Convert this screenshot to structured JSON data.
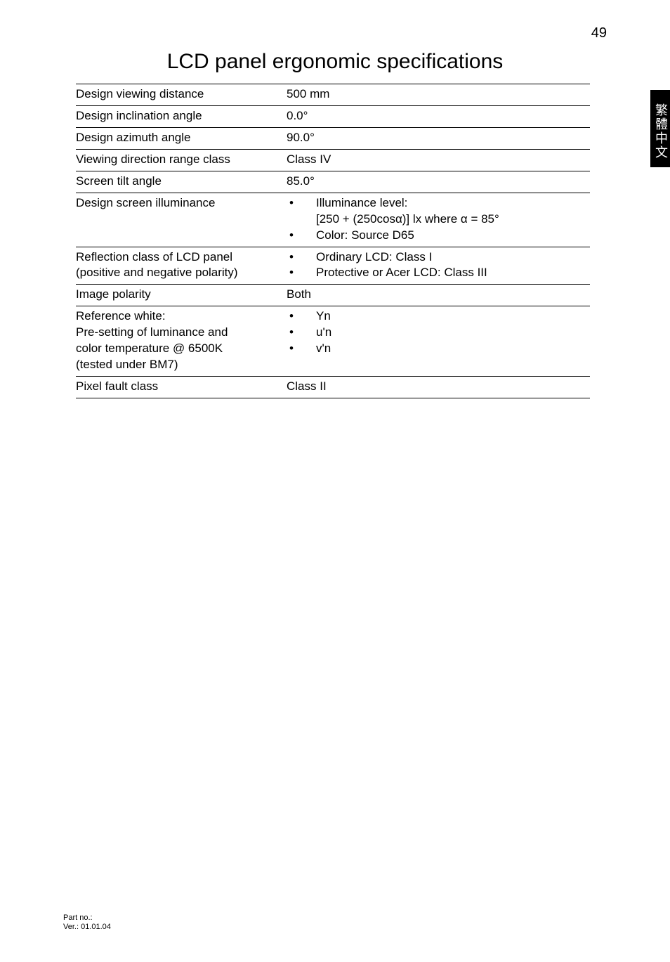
{
  "page_number": "49",
  "side_tab": "繁體中文",
  "title": "LCD panel ergonomic specifications",
  "rows": [
    {
      "label": "Design viewing distance",
      "value": "500 mm"
    },
    {
      "label": "Design inclination angle",
      "value": "0.0°"
    },
    {
      "label": "Design azimuth angle",
      "value": "90.0°"
    },
    {
      "label": "Viewing direction range class",
      "value": "Class IV"
    },
    {
      "label": "Screen tilt angle",
      "value": "85.0°"
    }
  ],
  "illuminance": {
    "label": "Design screen illuminance",
    "items": [
      "Illuminance level:",
      "[250 + (250cosα)] lx where α = 85°",
      "Color: Source D65"
    ]
  },
  "reflection": {
    "label_l1": "Reflection class of LCD panel",
    "label_l2": "(positive and negative polarity)",
    "items": [
      "Ordinary LCD: Class I",
      "Protective or Acer LCD: Class III"
    ]
  },
  "polarity": {
    "label": "Image polarity",
    "value": "Both"
  },
  "reference": {
    "label_l1": "Reference white:",
    "label_l2": "Pre-setting of luminance and",
    "label_l3": "color temperature @ 6500K",
    "label_l4": "(tested under BM7)",
    "items": [
      "Yn",
      "u'n",
      "v'n"
    ]
  },
  "pixel": {
    "label": "Pixel fault class",
    "value": "Class II"
  },
  "footer": {
    "l1": "Part no.:",
    "l2": "Ver.: 01.01.04"
  }
}
